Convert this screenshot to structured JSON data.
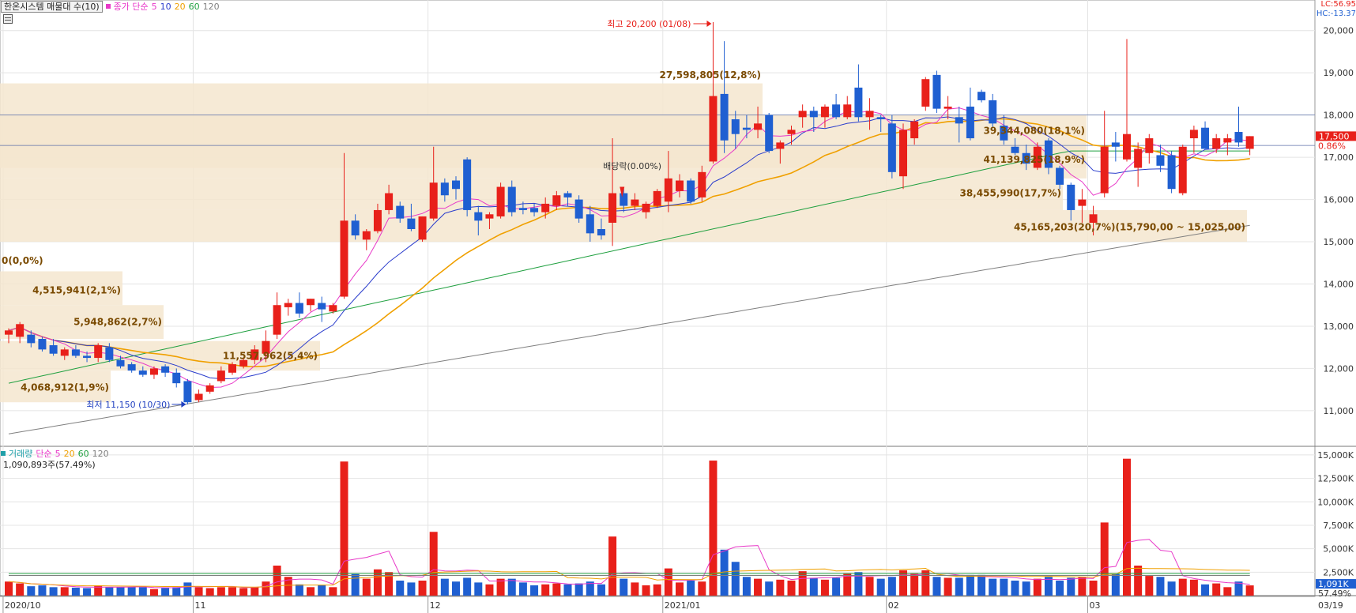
{
  "header": {
    "title": "한온시스템 매물대 수(10)",
    "ma_label": "종가 단순",
    "ma_periods": [
      "5",
      "10",
      "20",
      "60",
      "120"
    ],
    "lc": "LC:56.95",
    "hc": "HC:-13.37"
  },
  "volume_header": {
    "label": "거래량",
    "ma_label": "단순",
    "ma_periods": [
      "5",
      "20",
      "60",
      "120"
    ],
    "current": "1,090,893주(57.49%)"
  },
  "colors": {
    "up": "#e8201a",
    "down": "#1f5fd1",
    "ma5": "#e838c8",
    "ma10": "#2a3ccc",
    "ma20": "#f0a000",
    "ma60": "#20a040",
    "ma120": "#808080",
    "profile": "#f5e6cf",
    "profile_text": "#7a4a00"
  },
  "annotations": {
    "high": "최고 20,200 (01/08)",
    "low": "최저 11,150 (10/30)",
    "dividend": "배당락(0.00%)"
  },
  "current_price": {
    "price": "17,500",
    "change": "0.86%",
    "volume": "1,091K",
    "volume_ratio": "57.49%"
  },
  "chart_data": {
    "type": "candlestick",
    "price_axis": {
      "ticks": [
        "11,000",
        "12,000",
        "13,000",
        "14,000",
        "15,000",
        "16,000",
        "17,000",
        "18,000",
        "19,000",
        "20,000"
      ],
      "range": [
        10250,
        20350
      ]
    },
    "volume_axis": {
      "ticks": [
        "2,500K",
        "5,000K",
        "7,500K",
        "10,000K",
        "12,500K",
        "15,000K"
      ],
      "range": [
        0,
        15500
      ]
    },
    "x_labels": [
      {
        "label": "2020/10",
        "index": 0
      },
      {
        "label": "11",
        "index": 17
      },
      {
        "label": "12",
        "index": 38
      },
      {
        "label": "2021/01",
        "index": 59
      },
      {
        "label": "02",
        "index": 79
      },
      {
        "label": "03",
        "index": 97
      },
      {
        "label": "03/19",
        "index": 110
      }
    ],
    "volume_profile": [
      {
        "label": "0(0,0%)",
        "low": 14500,
        "high": 14500
      },
      {
        "label": "4,515,941(2,1%)",
        "low": 13500,
        "high": 14300
      },
      {
        "label": "5,948,862(2,7%)",
        "low": 12700,
        "high": 13500
      },
      {
        "label": "11,557,962(5,4%)",
        "low": 11950,
        "high": 12650
      },
      {
        "label": "4,068,912(1,9%)",
        "low": 11200,
        "high": 11950
      },
      {
        "label": "27,598,805(12,8%)",
        "low": 17250,
        "high": 18750
      },
      {
        "label": "39,344,080(18,1%)",
        "low": 16750,
        "high": 18000
      },
      {
        "label": "41,139,825(18,9%)",
        "low": 16500,
        "high": 17250
      },
      {
        "label": "38,455,990(17,7%)",
        "low": 15750,
        "high": 16500
      },
      {
        "label": "45,165,203(20,7%)(15,790,00 ~ 15,025,00)",
        "low": 15000,
        "high": 15750
      }
    ],
    "candles": [
      {
        "o": 12800,
        "h": 12950,
        "l": 12600,
        "c": 12900,
        "v": 1500
      },
      {
        "o": 12750,
        "h": 13100,
        "l": 12600,
        "c": 13050,
        "v": 1300
      },
      {
        "o": 12800,
        "h": 12900,
        "l": 12500,
        "c": 12600,
        "v": 1000
      },
      {
        "o": 12700,
        "h": 12750,
        "l": 12400,
        "c": 12450,
        "v": 1100
      },
      {
        "o": 12550,
        "h": 12700,
        "l": 12300,
        "c": 12350,
        "v": 900
      },
      {
        "o": 12300,
        "h": 12500,
        "l": 12200,
        "c": 12450,
        "v": 900
      },
      {
        "o": 12450,
        "h": 12550,
        "l": 12250,
        "c": 12300,
        "v": 850
      },
      {
        "o": 12300,
        "h": 12400,
        "l": 12150,
        "c": 12250,
        "v": 800
      },
      {
        "o": 12250,
        "h": 12600,
        "l": 12150,
        "c": 12550,
        "v": 1100
      },
      {
        "o": 12500,
        "h": 12600,
        "l": 12150,
        "c": 12200,
        "v": 900
      },
      {
        "o": 12200,
        "h": 12300,
        "l": 12000,
        "c": 12050,
        "v": 900
      },
      {
        "o": 12100,
        "h": 12150,
        "l": 11900,
        "c": 11950,
        "v": 900
      },
      {
        "o": 11950,
        "h": 12050,
        "l": 11800,
        "c": 11850,
        "v": 900
      },
      {
        "o": 11850,
        "h": 12050,
        "l": 11750,
        "c": 12000,
        "v": 700
      },
      {
        "o": 12050,
        "h": 12100,
        "l": 11800,
        "c": 11900,
        "v": 800
      },
      {
        "o": 11900,
        "h": 12000,
        "l": 11550,
        "c": 11650,
        "v": 900
      },
      {
        "o": 11700,
        "h": 11750,
        "l": 11150,
        "c": 11200,
        "v": 1400
      },
      {
        "o": 11250,
        "h": 11500,
        "l": 11200,
        "c": 11400,
        "v": 900
      },
      {
        "o": 11450,
        "h": 11650,
        "l": 11400,
        "c": 11600,
        "v": 800
      },
      {
        "o": 11700,
        "h": 12050,
        "l": 11650,
        "c": 11950,
        "v": 900
      },
      {
        "o": 11900,
        "h": 12150,
        "l": 11850,
        "c": 12100,
        "v": 900
      },
      {
        "o": 12050,
        "h": 12250,
        "l": 12000,
        "c": 12200,
        "v": 800
      },
      {
        "o": 12200,
        "h": 12550,
        "l": 12100,
        "c": 12450,
        "v": 900
      },
      {
        "o": 12350,
        "h": 12900,
        "l": 12150,
        "c": 12650,
        "v": 1500
      },
      {
        "o": 12800,
        "h": 13800,
        "l": 12700,
        "c": 13500,
        "v": 3200
      },
      {
        "o": 13450,
        "h": 13650,
        "l": 13250,
        "c": 13550,
        "v": 2000
      },
      {
        "o": 13550,
        "h": 13800,
        "l": 13200,
        "c": 13300,
        "v": 1200
      },
      {
        "o": 13500,
        "h": 13650,
        "l": 13350,
        "c": 13650,
        "v": 900
      },
      {
        "o": 13550,
        "h": 13700,
        "l": 13100,
        "c": 13400,
        "v": 1100
      },
      {
        "o": 13350,
        "h": 13550,
        "l": 13300,
        "c": 13500,
        "v": 900
      },
      {
        "o": 13700,
        "h": 17100,
        "l": 13650,
        "c": 15500,
        "v": 14300
      },
      {
        "o": 15500,
        "h": 15650,
        "l": 15050,
        "c": 15150,
        "v": 2300
      },
      {
        "o": 15050,
        "h": 15300,
        "l": 14800,
        "c": 15250,
        "v": 1800
      },
      {
        "o": 15250,
        "h": 15900,
        "l": 15200,
        "c": 15750,
        "v": 2800
      },
      {
        "o": 15750,
        "h": 16350,
        "l": 15650,
        "c": 16150,
        "v": 2500
      },
      {
        "o": 15850,
        "h": 15950,
        "l": 15450,
        "c": 15550,
        "v": 1600
      },
      {
        "o": 15550,
        "h": 15900,
        "l": 15250,
        "c": 15300,
        "v": 1400
      },
      {
        "o": 15050,
        "h": 15600,
        "l": 15000,
        "c": 15600,
        "v": 1600
      },
      {
        "o": 15550,
        "h": 17250,
        "l": 15500,
        "c": 16400,
        "v": 6800
      },
      {
        "o": 16400,
        "h": 16500,
        "l": 15950,
        "c": 16100,
        "v": 1800
      },
      {
        "o": 16450,
        "h": 16550,
        "l": 16000,
        "c": 16250,
        "v": 1500
      },
      {
        "o": 16950,
        "h": 17000,
        "l": 15600,
        "c": 15750,
        "v": 1900
      },
      {
        "o": 15700,
        "h": 15850,
        "l": 15150,
        "c": 15500,
        "v": 1400
      },
      {
        "o": 15550,
        "h": 15700,
        "l": 15300,
        "c": 15650,
        "v": 1200
      },
      {
        "o": 15600,
        "h": 16400,
        "l": 15550,
        "c": 16300,
        "v": 1800
      },
      {
        "o": 16300,
        "h": 16450,
        "l": 15600,
        "c": 15700,
        "v": 1800
      },
      {
        "o": 15800,
        "h": 15950,
        "l": 15650,
        "c": 15750,
        "v": 1400
      },
      {
        "o": 15800,
        "h": 15900,
        "l": 15600,
        "c": 15700,
        "v": 1100
      },
      {
        "o": 15700,
        "h": 16050,
        "l": 15550,
        "c": 15900,
        "v": 1200
      },
      {
        "o": 15850,
        "h": 16200,
        "l": 15750,
        "c": 16100,
        "v": 1300
      },
      {
        "o": 16150,
        "h": 16200,
        "l": 15850,
        "c": 16050,
        "v": 1200
      },
      {
        "o": 16000,
        "h": 16100,
        "l": 15450,
        "c": 15550,
        "v": 1300
      },
      {
        "o": 15650,
        "h": 15850,
        "l": 15000,
        "c": 15200,
        "v": 1500
      },
      {
        "o": 15300,
        "h": 15550,
        "l": 15050,
        "c": 15150,
        "v": 1200
      },
      {
        "o": 15450,
        "h": 17450,
        "l": 14900,
        "c": 16150,
        "v": 6300
      },
      {
        "o": 16150,
        "h": 16250,
        "l": 15700,
        "c": 15850,
        "v": 1800
      },
      {
        "o": 15850,
        "h": 16150,
        "l": 15750,
        "c": 16000,
        "v": 1400
      },
      {
        "o": 15700,
        "h": 15950,
        "l": 15550,
        "c": 15900,
        "v": 1100
      },
      {
        "o": 15850,
        "h": 16250,
        "l": 15800,
        "c": 16200,
        "v": 1200
      },
      {
        "o": 15950,
        "h": 17150,
        "l": 15700,
        "c": 16500,
        "v": 2900
      },
      {
        "o": 16200,
        "h": 16600,
        "l": 16050,
        "c": 16450,
        "v": 1400
      },
      {
        "o": 16450,
        "h": 16500,
        "l": 15900,
        "c": 15950,
        "v": 1600
      },
      {
        "o": 16050,
        "h": 16800,
        "l": 15950,
        "c": 16650,
        "v": 1500
      },
      {
        "o": 16900,
        "h": 20200,
        "l": 16850,
        "c": 18450,
        "v": 14400
      },
      {
        "o": 18500,
        "h": 19750,
        "l": 17100,
        "c": 17400,
        "v": 4900
      },
      {
        "o": 17900,
        "h": 18100,
        "l": 17200,
        "c": 17550,
        "v": 3600
      },
      {
        "o": 17700,
        "h": 18000,
        "l": 17450,
        "c": 17650,
        "v": 2000
      },
      {
        "o": 17650,
        "h": 18200,
        "l": 17450,
        "c": 17800,
        "v": 1800
      },
      {
        "o": 18000,
        "h": 18050,
        "l": 17100,
        "c": 17150,
        "v": 1500
      },
      {
        "o": 17200,
        "h": 17400,
        "l": 16850,
        "c": 17350,
        "v": 1700
      },
      {
        "o": 17550,
        "h": 17750,
        "l": 17300,
        "c": 17650,
        "v": 1600
      },
      {
        "o": 17950,
        "h": 18250,
        "l": 17700,
        "c": 18100,
        "v": 2600
      },
      {
        "o": 18100,
        "h": 18200,
        "l": 17600,
        "c": 17950,
        "v": 1900
      },
      {
        "o": 17950,
        "h": 18250,
        "l": 17700,
        "c": 18200,
        "v": 1700
      },
      {
        "o": 18250,
        "h": 18500,
        "l": 17900,
        "c": 17950,
        "v": 1900
      },
      {
        "o": 17950,
        "h": 18450,
        "l": 17900,
        "c": 18250,
        "v": 2400
      },
      {
        "o": 18650,
        "h": 19200,
        "l": 17850,
        "c": 17950,
        "v": 2500
      },
      {
        "o": 17950,
        "h": 18400,
        "l": 17650,
        "c": 18100,
        "v": 2000
      },
      {
        "o": 17950,
        "h": 18000,
        "l": 17600,
        "c": 17900,
        "v": 1800
      },
      {
        "o": 17800,
        "h": 18000,
        "l": 16500,
        "c": 16650,
        "v": 2000
      },
      {
        "o": 16550,
        "h": 17800,
        "l": 16250,
        "c": 17650,
        "v": 2700
      },
      {
        "o": 17450,
        "h": 17900,
        "l": 17300,
        "c": 17850,
        "v": 2400
      },
      {
        "o": 18200,
        "h": 18900,
        "l": 18100,
        "c": 18850,
        "v": 2700
      },
      {
        "o": 18950,
        "h": 19050,
        "l": 18050,
        "c": 18150,
        "v": 2000
      },
      {
        "o": 18150,
        "h": 18450,
        "l": 17900,
        "c": 18200,
        "v": 1900
      },
      {
        "o": 17950,
        "h": 18200,
        "l": 17350,
        "c": 17800,
        "v": 1900
      },
      {
        "o": 18200,
        "h": 18650,
        "l": 17400,
        "c": 17450,
        "v": 2200
      },
      {
        "o": 18550,
        "h": 18600,
        "l": 18300,
        "c": 18350,
        "v": 2200
      },
      {
        "o": 18350,
        "h": 18500,
        "l": 17700,
        "c": 17800,
        "v": 1800
      },
      {
        "o": 17750,
        "h": 18000,
        "l": 17300,
        "c": 17400,
        "v": 1800
      },
      {
        "o": 17250,
        "h": 17450,
        "l": 17050,
        "c": 17100,
        "v": 1600
      },
      {
        "o": 17100,
        "h": 17300,
        "l": 16700,
        "c": 16850,
        "v": 1500
      },
      {
        "o": 16750,
        "h": 17350,
        "l": 16700,
        "c": 17250,
        "v": 1800
      },
      {
        "o": 17400,
        "h": 17450,
        "l": 16600,
        "c": 16750,
        "v": 2000
      },
      {
        "o": 16750,
        "h": 16800,
        "l": 16250,
        "c": 16350,
        "v": 1600
      },
      {
        "o": 16350,
        "h": 16400,
        "l": 15500,
        "c": 15750,
        "v": 1900
      },
      {
        "o": 15850,
        "h": 16250,
        "l": 15450,
        "c": 16000,
        "v": 2000
      },
      {
        "o": 15450,
        "h": 15850,
        "l": 15150,
        "c": 15650,
        "v": 1600
      },
      {
        "o": 16150,
        "h": 18100,
        "l": 16050,
        "c": 17250,
        "v": 7800
      },
      {
        "o": 17350,
        "h": 17600,
        "l": 16900,
        "c": 17250,
        "v": 2300
      },
      {
        "o": 16950,
        "h": 19800,
        "l": 16900,
        "c": 17550,
        "v": 14600
      },
      {
        "o": 16750,
        "h": 17350,
        "l": 16300,
        "c": 17200,
        "v": 3200
      },
      {
        "o": 17100,
        "h": 17550,
        "l": 16850,
        "c": 17450,
        "v": 2100
      },
      {
        "o": 17050,
        "h": 17300,
        "l": 16650,
        "c": 16800,
        "v": 2000
      },
      {
        "o": 17050,
        "h": 17150,
        "l": 16150,
        "c": 16250,
        "v": 1500
      },
      {
        "o": 16150,
        "h": 17300,
        "l": 16100,
        "c": 17250,
        "v": 1800
      },
      {
        "o": 17450,
        "h": 17750,
        "l": 17100,
        "c": 17650,
        "v": 1700
      },
      {
        "o": 17700,
        "h": 17850,
        "l": 17200,
        "c": 17200,
        "v": 1200
      },
      {
        "o": 17200,
        "h": 17550,
        "l": 17100,
        "c": 17450,
        "v": 1300
      },
      {
        "o": 17350,
        "h": 17550,
        "l": 17050,
        "c": 17450,
        "v": 900
      },
      {
        "o": 17600,
        "h": 18200,
        "l": 17250,
        "c": 17350,
        "v": 1500
      },
      {
        "o": 17200,
        "h": 17500,
        "l": 17050,
        "c": 17500,
        "v": 1091
      }
    ]
  }
}
